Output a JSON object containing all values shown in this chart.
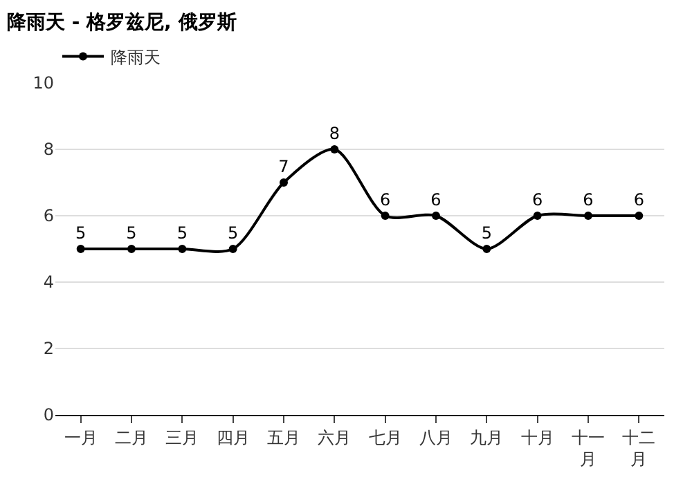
{
  "chart_data": {
    "type": "line",
    "title": "降雨天 - 格罗兹尼, 俄罗斯",
    "categories": [
      "一月",
      "二月",
      "三月",
      "四月",
      "五月",
      "六月",
      "七月",
      "八月",
      "九月",
      "十月",
      "十一月",
      "十二月"
    ],
    "series": [
      {
        "name": "降雨天",
        "color": "#000000",
        "values": [
          5,
          5,
          5,
          5,
          7,
          8,
          6,
          6,
          5,
          6,
          6,
          6
        ]
      }
    ],
    "ylim": [
      0,
      10
    ],
    "yticks": [
      0,
      2,
      4,
      6,
      8,
      10
    ],
    "grid": "y",
    "legend": "top left",
    "marker": "circle",
    "line_style": "solid",
    "data_labels": true
  }
}
